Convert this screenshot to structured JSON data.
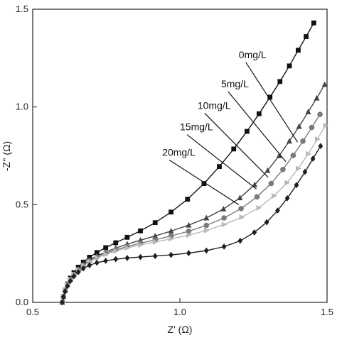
{
  "chart_data": {
    "type": "line",
    "xlabel": "Z' (Ω)",
    "ylabel": "-Z'' (Ω)",
    "xlim": [
      0.5,
      1.5
    ],
    "ylim": [
      0.0,
      1.5
    ],
    "xticks": [
      "0.5",
      "1.0",
      "1.5"
    ],
    "yticks": [
      "0.0",
      "0.5",
      "1.0",
      "1.5"
    ],
    "grid": false,
    "legend": "annotations",
    "series": [
      {
        "name": "0mg/L",
        "color": "#111111",
        "marker": "square",
        "x": [
          0.6,
          0.604,
          0.61,
          0.618,
          0.628,
          0.64,
          0.655,
          0.672,
          0.693,
          0.718,
          0.748,
          0.782,
          0.821,
          0.866,
          0.916,
          0.97,
          1.026,
          1.082,
          1.134,
          1.183,
          1.228,
          1.269,
          1.306,
          1.34,
          1.372,
          1.402,
          1.429,
          1.455
        ],
        "y": [
          0.0,
          0.03,
          0.062,
          0.094,
          0.124,
          0.152,
          0.18,
          0.206,
          0.231,
          0.255,
          0.28,
          0.305,
          0.333,
          0.366,
          0.408,
          0.462,
          0.528,
          0.608,
          0.695,
          0.785,
          0.875,
          0.965,
          1.05,
          1.13,
          1.21,
          1.29,
          1.36,
          1.43
        ]
      },
      {
        "name": "5mg/L",
        "color": "#444444",
        "marker": "triangle-up",
        "x": [
          0.6,
          0.604,
          0.61,
          0.618,
          0.628,
          0.64,
          0.655,
          0.672,
          0.693,
          0.718,
          0.748,
          0.782,
          0.821,
          0.866,
          0.916,
          0.97,
          1.03,
          1.09,
          1.148,
          1.204,
          1.254,
          1.298,
          1.337,
          1.372,
          1.405,
          1.436,
          1.465,
          1.492
        ],
        "y": [
          0.0,
          0.03,
          0.06,
          0.09,
          0.118,
          0.145,
          0.17,
          0.194,
          0.217,
          0.238,
          0.258,
          0.278,
          0.298,
          0.318,
          0.34,
          0.365,
          0.395,
          0.432,
          0.478,
          0.535,
          0.602,
          0.675,
          0.75,
          0.825,
          0.9,
          0.975,
          1.045,
          1.115
        ]
      },
      {
        "name": "10mg/L",
        "color": "#7a7a7a",
        "marker": "circle",
        "x": [
          0.6,
          0.604,
          0.61,
          0.618,
          0.628,
          0.64,
          0.655,
          0.672,
          0.693,
          0.718,
          0.748,
          0.782,
          0.821,
          0.866,
          0.916,
          0.97,
          1.03,
          1.09,
          1.15,
          1.208,
          1.262,
          1.31,
          1.35,
          1.385,
          1.418,
          1.448,
          1.476
        ],
        "y": [
          0.0,
          0.03,
          0.06,
          0.09,
          0.117,
          0.143,
          0.167,
          0.19,
          0.212,
          0.232,
          0.251,
          0.269,
          0.286,
          0.303,
          0.32,
          0.34,
          0.364,
          0.394,
          0.432,
          0.48,
          0.54,
          0.608,
          0.68,
          0.752,
          0.825,
          0.895,
          0.962
        ]
      },
      {
        "name": "15mg/L",
        "color": "#b8b8b8",
        "marker": "triangle-right",
        "x": [
          0.6,
          0.604,
          0.61,
          0.618,
          0.628,
          0.64,
          0.655,
          0.672,
          0.693,
          0.718,
          0.748,
          0.782,
          0.821,
          0.866,
          0.916,
          0.97,
          1.03,
          1.09,
          1.15,
          1.21,
          1.268,
          1.32,
          1.364,
          1.402,
          1.436,
          1.467,
          1.495
        ],
        "y": [
          0.0,
          0.03,
          0.06,
          0.09,
          0.117,
          0.143,
          0.166,
          0.188,
          0.209,
          0.228,
          0.246,
          0.263,
          0.279,
          0.294,
          0.309,
          0.325,
          0.344,
          0.368,
          0.398,
          0.436,
          0.484,
          0.545,
          0.612,
          0.685,
          0.76,
          0.835,
          0.905
        ]
      },
      {
        "name": "20mg/L",
        "color": "#1e1e1e",
        "marker": "diamond",
        "x": [
          0.6,
          0.604,
          0.61,
          0.618,
          0.628,
          0.64,
          0.655,
          0.672,
          0.693,
          0.718,
          0.748,
          0.782,
          0.821,
          0.866,
          0.916,
          0.97,
          1.03,
          1.09,
          1.15,
          1.205,
          1.253,
          1.295,
          1.332,
          1.365,
          1.396,
          1.425,
          1.452,
          1.478
        ],
        "y": [
          0.0,
          0.028,
          0.056,
          0.084,
          0.11,
          0.134,
          0.155,
          0.174,
          0.19,
          0.203,
          0.213,
          0.221,
          0.227,
          0.232,
          0.237,
          0.243,
          0.252,
          0.265,
          0.285,
          0.315,
          0.358,
          0.41,
          0.47,
          0.533,
          0.6,
          0.668,
          0.735,
          0.8
        ]
      }
    ],
    "annotations": [
      {
        "text": "0mg/L",
        "label_x": 1.2,
        "label_y": 1.25,
        "target_x": 1.4,
        "target_y": 0.82
      },
      {
        "text": "5mg/L",
        "label_x": 1.14,
        "label_y": 1.1,
        "target_x": 1.36,
        "target_y": 0.72
      },
      {
        "text": "10mg/L",
        "label_x": 1.06,
        "label_y": 0.99,
        "target_x": 1.3,
        "target_y": 0.64
      },
      {
        "text": "15mg/L",
        "label_x": 1.0,
        "label_y": 0.88,
        "target_x": 1.26,
        "target_y": 0.58
      },
      {
        "text": "20mg/L",
        "label_x": 0.94,
        "label_y": 0.75,
        "target_x": 1.2,
        "target_y": 0.5
      }
    ]
  }
}
